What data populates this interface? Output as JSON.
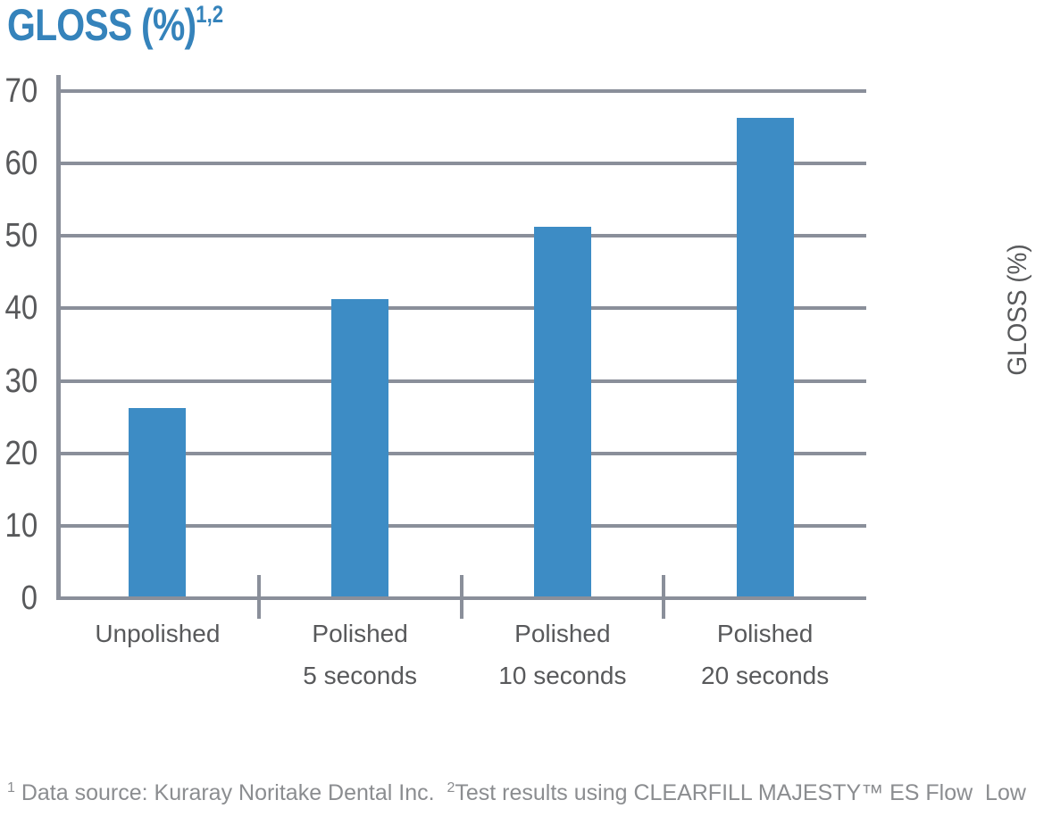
{
  "title": {
    "text": "GLOSS (%)",
    "superscript": "1,2"
  },
  "right_axis_label": "GLOSS (%)",
  "footnote": {
    "sup1": "1",
    "part1": " Data source: Kuraray Noritake Dental Inc.  ",
    "sup2": "2",
    "part2": "Test results using CLEARFILL MAJESTY™ ES Flow  Low"
  },
  "colors": {
    "bar_blue": "#3D8CC5",
    "title_blue": "#3583BB",
    "grid_gray": "#8A8F9A",
    "label_gray": "#58595B",
    "footnote_gray": "#8B8D90"
  },
  "chart_data": {
    "type": "bar",
    "title": "GLOSS (%)",
    "ylabel": "GLOSS (%)",
    "categories": [
      "Unpolished",
      "Polished 5 seconds",
      "Polished 10 seconds",
      "Polished 20 seconds"
    ],
    "category_lines": [
      [
        "Unpolished"
      ],
      [
        "Polished",
        "5 seconds"
      ],
      [
        "Polished",
        "10 seconds"
      ],
      [
        "Polished",
        "20 seconds"
      ]
    ],
    "values": [
      26,
      41,
      51,
      66
    ],
    "ylim": [
      0,
      70
    ],
    "yticks": [
      0,
      10,
      20,
      30,
      40,
      50,
      60,
      70
    ],
    "grid": true,
    "legend": "none",
    "bar_color": "#3D8CC5"
  }
}
